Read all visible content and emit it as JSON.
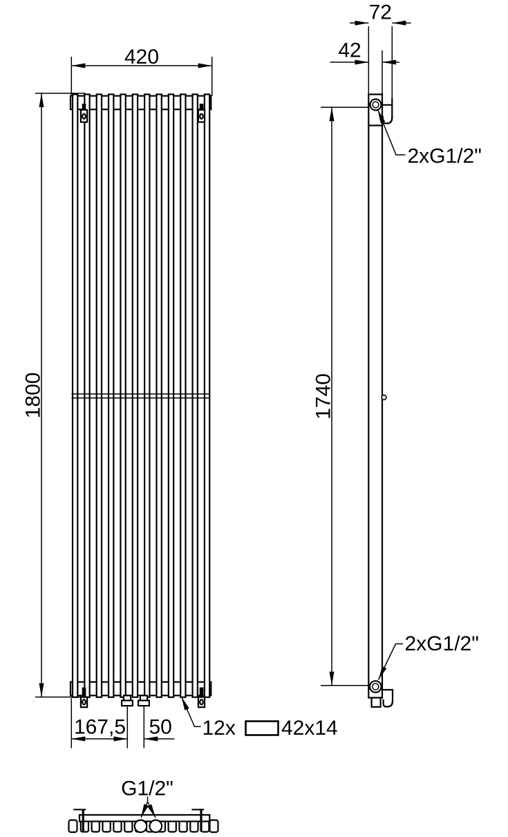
{
  "drawing": {
    "type": "radiator-technical-drawing",
    "background": "#ffffff",
    "line_color": "#000000",
    "text_color": "#000000"
  },
  "dims": {
    "front_width": "420",
    "front_height": "1800",
    "side_depth_total": "72",
    "side_depth_body": "42",
    "side_connection_height": "1740",
    "bottom_offset": "167,5",
    "bottom_spacing": "50"
  },
  "labels": {
    "tube_count": "12x",
    "tube_profile": "42x14",
    "top_connection": "2xG1/2\"",
    "bottom_connection": "2xG1/2\"",
    "plan_connection": "G1/2\""
  },
  "tubes": {
    "count": 12
  }
}
